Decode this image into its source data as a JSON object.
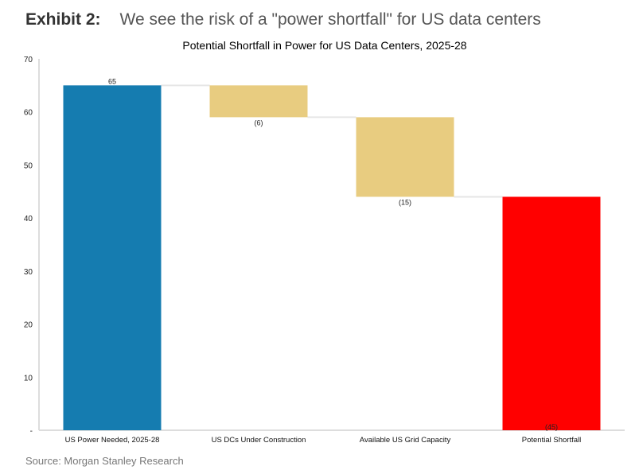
{
  "header": {
    "exhibit": "Exhibit 2:",
    "headline": "We see the risk of a \"power shortfall\" for US data centers"
  },
  "source": "Source: Morgan Stanley Research",
  "chart_data": {
    "type": "bar",
    "subtype": "waterfall",
    "title": "Potential Shortfall in Power for US Data Centers, 2025-28",
    "categories": [
      "US Power Needed, 2025-28",
      "US DCs Under Construction",
      "Available US Grid Capacity",
      "Potential Shortfall"
    ],
    "values": [
      65,
      -6,
      -15,
      45
    ],
    "data_labels": [
      "65",
      "(6)",
      "(15)",
      "(45)"
    ],
    "ylim": [
      0,
      70
    ],
    "yticks": [
      0,
      10,
      20,
      30,
      40,
      50,
      60,
      70
    ],
    "ytick_labels": [
      "-",
      "10",
      "20",
      "30",
      "40",
      "50",
      "60",
      "70"
    ],
    "colors": [
      "#157CB0",
      "#E8CC80",
      "#E8CC80",
      "#FF0000"
    ],
    "grid": false,
    "xlabel": "",
    "ylabel": ""
  }
}
